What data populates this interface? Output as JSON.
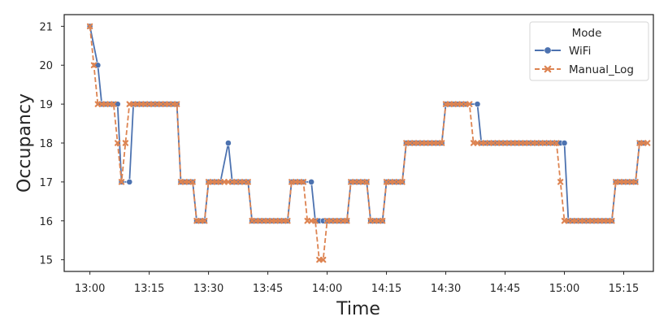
{
  "chart_data": {
    "type": "line",
    "title": "",
    "xlabel": "Time",
    "ylabel": "Occupancy",
    "x_ticks": [
      "13:00",
      "13:15",
      "13:30",
      "13:45",
      "14:00",
      "14:15",
      "14:30",
      "14:45",
      "15:00",
      "15:15"
    ],
    "x_tick_minutes": [
      0,
      15,
      30,
      45,
      60,
      75,
      90,
      105,
      120,
      135
    ],
    "xlim_minutes": [
      -6.5,
      142.5
    ],
    "ylim": [
      14.7,
      21.3
    ],
    "y_ticks": [
      15,
      16,
      17,
      18,
      19,
      20,
      21
    ],
    "grid": false,
    "legend": {
      "title": "Mode",
      "position": "top-right"
    },
    "series": [
      {
        "name": "WiFi",
        "color": "#4c72b0",
        "marker": "circle",
        "linestyle": "solid",
        "points": [
          [
            0,
            21
          ],
          [
            2,
            20
          ],
          [
            3,
            19
          ],
          [
            4,
            19
          ],
          [
            5,
            19
          ],
          [
            6,
            19
          ],
          [
            7,
            19
          ],
          [
            8,
            17
          ],
          [
            10,
            17
          ],
          [
            11,
            19
          ],
          [
            12,
            19
          ],
          [
            13,
            19
          ],
          [
            14,
            19
          ],
          [
            15,
            19
          ],
          [
            16,
            19
          ],
          [
            17,
            19
          ],
          [
            18,
            19
          ],
          [
            19,
            19
          ],
          [
            20,
            19
          ],
          [
            21,
            19
          ],
          [
            22,
            19
          ],
          [
            23,
            17
          ],
          [
            24,
            17
          ],
          [
            25,
            17
          ],
          [
            26,
            17
          ],
          [
            27,
            16
          ],
          [
            28,
            16
          ],
          [
            29,
            16
          ],
          [
            30,
            17
          ],
          [
            31,
            17
          ],
          [
            32,
            17
          ],
          [
            33,
            17
          ],
          [
            35,
            18
          ],
          [
            36,
            17
          ],
          [
            37,
            17
          ],
          [
            38,
            17
          ],
          [
            39,
            17
          ],
          [
            40,
            17
          ],
          [
            41,
            16
          ],
          [
            42,
            16
          ],
          [
            43,
            16
          ],
          [
            44,
            16
          ],
          [
            45,
            16
          ],
          [
            46,
            16
          ],
          [
            47,
            16
          ],
          [
            48,
            16
          ],
          [
            49,
            16
          ],
          [
            50,
            16
          ],
          [
            51,
            17
          ],
          [
            52,
            17
          ],
          [
            53,
            17
          ],
          [
            54,
            17
          ],
          [
            56,
            17
          ],
          [
            57,
            16
          ],
          [
            58,
            16
          ],
          [
            59,
            16
          ],
          [
            60,
            16
          ],
          [
            61,
            16
          ],
          [
            62,
            16
          ],
          [
            63,
            16
          ],
          [
            64,
            16
          ],
          [
            65,
            16
          ],
          [
            66,
            17
          ],
          [
            67,
            17
          ],
          [
            68,
            17
          ],
          [
            69,
            17
          ],
          [
            70,
            17
          ],
          [
            71,
            16
          ],
          [
            72,
            16
          ],
          [
            73,
            16
          ],
          [
            74,
            16
          ],
          [
            75,
            17
          ],
          [
            76,
            17
          ],
          [
            77,
            17
          ],
          [
            78,
            17
          ],
          [
            79,
            17
          ],
          [
            80,
            18
          ],
          [
            81,
            18
          ],
          [
            82,
            18
          ],
          [
            83,
            18
          ],
          [
            84,
            18
          ],
          [
            85,
            18
          ],
          [
            86,
            18
          ],
          [
            87,
            18
          ],
          [
            88,
            18
          ],
          [
            89,
            18
          ],
          [
            90,
            19
          ],
          [
            91,
            19
          ],
          [
            92,
            19
          ],
          [
            93,
            19
          ],
          [
            94,
            19
          ],
          [
            95,
            19
          ],
          [
            98,
            19
          ],
          [
            99,
            18
          ],
          [
            100,
            18
          ],
          [
            101,
            18
          ],
          [
            102,
            18
          ],
          [
            103,
            18
          ],
          [
            104,
            18
          ],
          [
            105,
            18
          ],
          [
            106,
            18
          ],
          [
            107,
            18
          ],
          [
            108,
            18
          ],
          [
            109,
            18
          ],
          [
            110,
            18
          ],
          [
            111,
            18
          ],
          [
            112,
            18
          ],
          [
            113,
            18
          ],
          [
            114,
            18
          ],
          [
            115,
            18
          ],
          [
            116,
            18
          ],
          [
            117,
            18
          ],
          [
            118,
            18
          ],
          [
            119,
            18
          ],
          [
            120,
            18
          ],
          [
            121,
            16
          ],
          [
            122,
            16
          ],
          [
            123,
            16
          ],
          [
            124,
            16
          ],
          [
            125,
            16
          ],
          [
            126,
            16
          ],
          [
            127,
            16
          ],
          [
            128,
            16
          ],
          [
            129,
            16
          ],
          [
            130,
            16
          ],
          [
            131,
            16
          ],
          [
            132,
            16
          ],
          [
            133,
            17
          ],
          [
            134,
            17
          ],
          [
            135,
            17
          ],
          [
            136,
            17
          ],
          [
            137,
            17
          ],
          [
            138,
            17
          ],
          [
            139,
            18
          ],
          [
            140,
            18
          ]
        ]
      },
      {
        "name": "Manual_Log",
        "color": "#dd8452",
        "marker": "x",
        "linestyle": "dashed",
        "points": [
          [
            0,
            21
          ],
          [
            1,
            20
          ],
          [
            2,
            19
          ],
          [
            3,
            19
          ],
          [
            4,
            19
          ],
          [
            5,
            19
          ],
          [
            6,
            19
          ],
          [
            7,
            18
          ],
          [
            8,
            17
          ],
          [
            9,
            18
          ],
          [
            10,
            19
          ],
          [
            11,
            19
          ],
          [
            12,
            19
          ],
          [
            13,
            19
          ],
          [
            14,
            19
          ],
          [
            15,
            19
          ],
          [
            16,
            19
          ],
          [
            17,
            19
          ],
          [
            18,
            19
          ],
          [
            19,
            19
          ],
          [
            20,
            19
          ],
          [
            21,
            19
          ],
          [
            22,
            19
          ],
          [
            23,
            17
          ],
          [
            24,
            17
          ],
          [
            25,
            17
          ],
          [
            26,
            17
          ],
          [
            27,
            16
          ],
          [
            28,
            16
          ],
          [
            29,
            16
          ],
          [
            30,
            17
          ],
          [
            31,
            17
          ],
          [
            32,
            17
          ],
          [
            33,
            17
          ],
          [
            34,
            17
          ],
          [
            35,
            17
          ],
          [
            36,
            17
          ],
          [
            37,
            17
          ],
          [
            38,
            17
          ],
          [
            39,
            17
          ],
          [
            40,
            17
          ],
          [
            41,
            16
          ],
          [
            42,
            16
          ],
          [
            43,
            16
          ],
          [
            44,
            16
          ],
          [
            45,
            16
          ],
          [
            46,
            16
          ],
          [
            47,
            16
          ],
          [
            48,
            16
          ],
          [
            49,
            16
          ],
          [
            50,
            16
          ],
          [
            51,
            17
          ],
          [
            52,
            17
          ],
          [
            53,
            17
          ],
          [
            54,
            17
          ],
          [
            55,
            16
          ],
          [
            56,
            16
          ],
          [
            57,
            16
          ],
          [
            58,
            15
          ],
          [
            59,
            15
          ],
          [
            60,
            16
          ],
          [
            61,
            16
          ],
          [
            62,
            16
          ],
          [
            63,
            16
          ],
          [
            64,
            16
          ],
          [
            65,
            16
          ],
          [
            66,
            17
          ],
          [
            67,
            17
          ],
          [
            68,
            17
          ],
          [
            69,
            17
          ],
          [
            70,
            17
          ],
          [
            71,
            16
          ],
          [
            72,
            16
          ],
          [
            73,
            16
          ],
          [
            74,
            16
          ],
          [
            75,
            17
          ],
          [
            76,
            17
          ],
          [
            77,
            17
          ],
          [
            78,
            17
          ],
          [
            79,
            17
          ],
          [
            80,
            18
          ],
          [
            81,
            18
          ],
          [
            82,
            18
          ],
          [
            83,
            18
          ],
          [
            84,
            18
          ],
          [
            85,
            18
          ],
          [
            86,
            18
          ],
          [
            87,
            18
          ],
          [
            88,
            18
          ],
          [
            89,
            18
          ],
          [
            90,
            19
          ],
          [
            91,
            19
          ],
          [
            92,
            19
          ],
          [
            93,
            19
          ],
          [
            94,
            19
          ],
          [
            95,
            19
          ],
          [
            96,
            19
          ],
          [
            97,
            18
          ],
          [
            98,
            18
          ],
          [
            99,
            18
          ],
          [
            100,
            18
          ],
          [
            101,
            18
          ],
          [
            102,
            18
          ],
          [
            103,
            18
          ],
          [
            104,
            18
          ],
          [
            105,
            18
          ],
          [
            106,
            18
          ],
          [
            107,
            18
          ],
          [
            108,
            18
          ],
          [
            109,
            18
          ],
          [
            110,
            18
          ],
          [
            111,
            18
          ],
          [
            112,
            18
          ],
          [
            113,
            18
          ],
          [
            114,
            18
          ],
          [
            115,
            18
          ],
          [
            116,
            18
          ],
          [
            117,
            18
          ],
          [
            118,
            18
          ],
          [
            119,
            17
          ],
          [
            120,
            16
          ],
          [
            121,
            16
          ],
          [
            122,
            16
          ],
          [
            123,
            16
          ],
          [
            124,
            16
          ],
          [
            125,
            16
          ],
          [
            126,
            16
          ],
          [
            127,
            16
          ],
          [
            128,
            16
          ],
          [
            129,
            16
          ],
          [
            130,
            16
          ],
          [
            131,
            16
          ],
          [
            132,
            16
          ],
          [
            133,
            17
          ],
          [
            134,
            17
          ],
          [
            135,
            17
          ],
          [
            136,
            17
          ],
          [
            137,
            17
          ],
          [
            138,
            17
          ],
          [
            139,
            18
          ],
          [
            140,
            18
          ],
          [
            141,
            18
          ]
        ]
      }
    ]
  }
}
